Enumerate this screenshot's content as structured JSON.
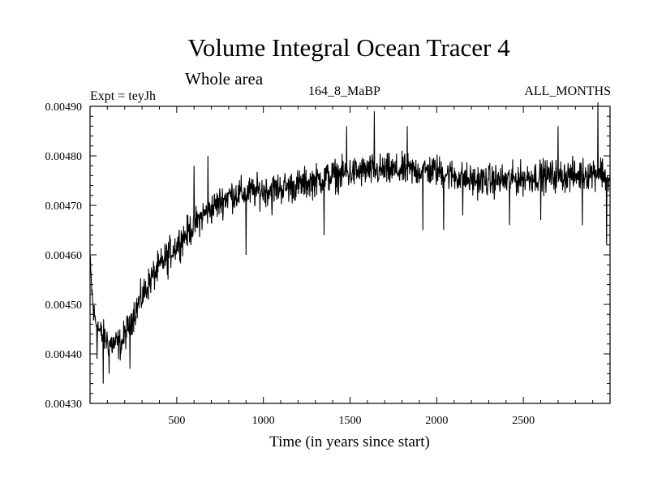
{
  "chart_data": {
    "type": "line",
    "title": "Volume Integral Ocean Tracer 4",
    "subtitle": "Whole area",
    "experiment": "Expt = teyJh",
    "run_label": "164_8_MaBP",
    "months_label": "ALL_MONTHS",
    "xlabel": "Time (in years since start)",
    "ylabel": "",
    "xlim": [
      0,
      3000
    ],
    "ylim": [
      0.0043,
      0.0049
    ],
    "x_ticks": [
      500,
      1000,
      1500,
      2000,
      2500
    ],
    "x_tick_labels": [
      "500",
      "1000",
      "1500",
      "2000",
      "2500"
    ],
    "y_ticks": [
      0.0043,
      0.0044,
      0.0045,
      0.0046,
      0.0047,
      0.0048,
      0.0049
    ],
    "y_tick_labels": [
      "0.00430",
      "0.00440",
      "0.00450",
      "0.00460",
      "0.00470",
      "0.00480",
      "0.00490"
    ],
    "grid": false,
    "series": [
      {
        "name": "Volume Integral Ocean Tracer 4",
        "color": "#000000",
        "trend_x": [
          0,
          20,
          60,
          120,
          180,
          250,
          350,
          450,
          550,
          650,
          800,
          1000,
          1200,
          1400,
          1600,
          1800,
          2000,
          2200,
          2400,
          2600,
          2800,
          2950,
          3000
        ],
        "trend_y": [
          0.00458,
          0.00448,
          0.00444,
          0.00442,
          0.00442,
          0.00448,
          0.00455,
          0.0046,
          0.00464,
          0.00468,
          0.00472,
          0.00473,
          0.00474,
          0.00476,
          0.00477,
          0.00477,
          0.00477,
          0.00475,
          0.00475,
          0.00476,
          0.00476,
          0.00477,
          0.00474
        ],
        "noise_amplitude": 2.8e-05,
        "spikes": [
          {
            "x": 40,
            "y": 0.00439
          },
          {
            "x": 75,
            "y": 0.00434
          },
          {
            "x": 110,
            "y": 0.00436
          },
          {
            "x": 230,
            "y": 0.00437
          },
          {
            "x": 450,
            "y": 0.00455
          },
          {
            "x": 600,
            "y": 0.00478
          },
          {
            "x": 680,
            "y": 0.0048
          },
          {
            "x": 900,
            "y": 0.0046
          },
          {
            "x": 1050,
            "y": 0.00468
          },
          {
            "x": 1350,
            "y": 0.00464
          },
          {
            "x": 1480,
            "y": 0.00486
          },
          {
            "x": 1640,
            "y": 0.00489
          },
          {
            "x": 1830,
            "y": 0.00486
          },
          {
            "x": 1920,
            "y": 0.00465
          },
          {
            "x": 2040,
            "y": 0.00465
          },
          {
            "x": 2150,
            "y": 0.00468
          },
          {
            "x": 2420,
            "y": 0.00466
          },
          {
            "x": 2600,
            "y": 0.00467
          },
          {
            "x": 2700,
            "y": 0.00486
          },
          {
            "x": 2840,
            "y": 0.00466
          },
          {
            "x": 2930,
            "y": 0.00491
          },
          {
            "x": 2980,
            "y": 0.00462
          }
        ]
      }
    ]
  }
}
